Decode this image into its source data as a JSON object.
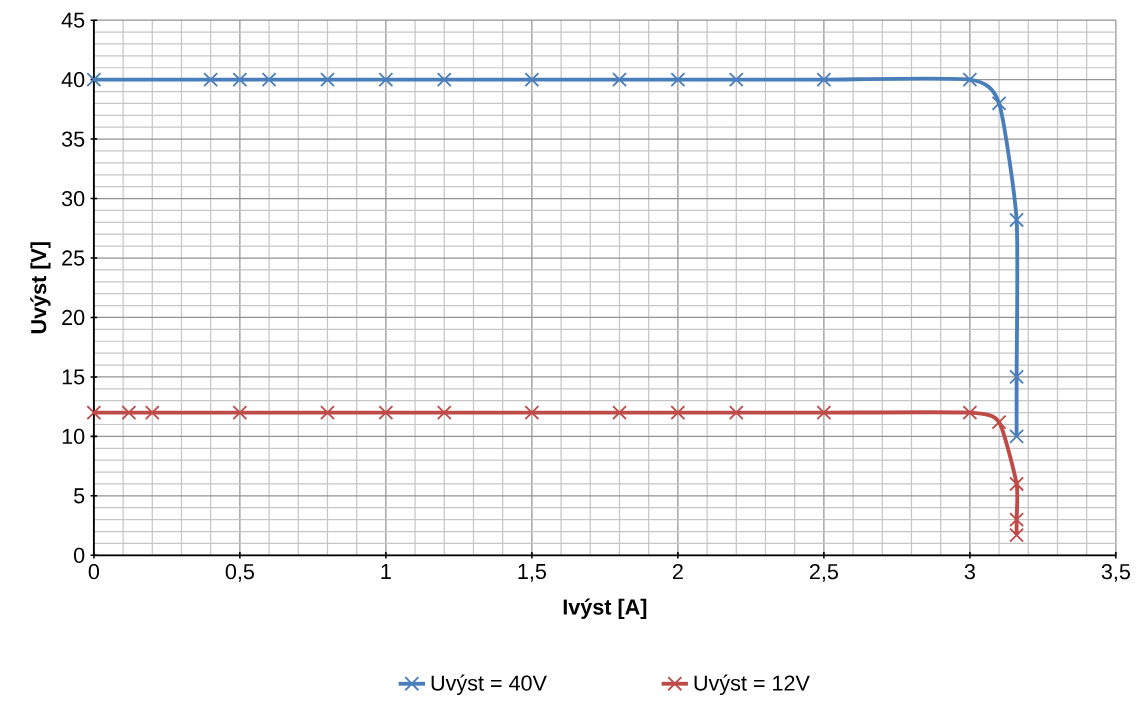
{
  "chart_data": {
    "type": "line",
    "xlabel": "Ivýst [A]",
    "ylabel": "Uvýst [V]",
    "xlim": [
      0,
      3.5
    ],
    "ylim": [
      0,
      45
    ],
    "xticks": [
      {
        "value": 0,
        "label": "0"
      },
      {
        "value": 0.5,
        "label": "0,5"
      },
      {
        "value": 1,
        "label": "1"
      },
      {
        "value": 1.5,
        "label": "1,5"
      },
      {
        "value": 2,
        "label": "2"
      },
      {
        "value": 2.5,
        "label": "2,5"
      },
      {
        "value": 3,
        "label": "3"
      },
      {
        "value": 3.5,
        "label": "3,5"
      }
    ],
    "yticks": [
      0,
      5,
      10,
      15,
      20,
      25,
      30,
      35,
      40,
      45
    ],
    "grid": true,
    "legend": "bottom",
    "marker": "cross",
    "line_style": "solid",
    "series": [
      {
        "name": "Uvýst = 40V",
        "color": "#4a7ebb",
        "x": [
          0,
          0.4,
          0.5,
          0.6,
          0.8,
          1,
          1.2,
          1.5,
          1.8,
          2,
          2.2,
          2.5,
          3,
          3.1,
          3.16,
          3.16,
          3.16
        ],
        "values": [
          40,
          40,
          40,
          40,
          40,
          40,
          40,
          40,
          40,
          40,
          40,
          40,
          40,
          38,
          28.2,
          15,
          10
        ]
      },
      {
        "name": "Uvýst = 12V",
        "color": "#be4b48",
        "x": [
          0,
          0.12,
          0.2,
          0.5,
          0.8,
          1,
          1.2,
          1.5,
          1.8,
          2,
          2.2,
          2.5,
          3,
          3.1,
          3.16,
          3.16,
          3.16
        ],
        "values": [
          12,
          12,
          12,
          12,
          12,
          12,
          12,
          12,
          12,
          12,
          12,
          12,
          12,
          11.2,
          6,
          3,
          1.7
        ]
      }
    ]
  }
}
